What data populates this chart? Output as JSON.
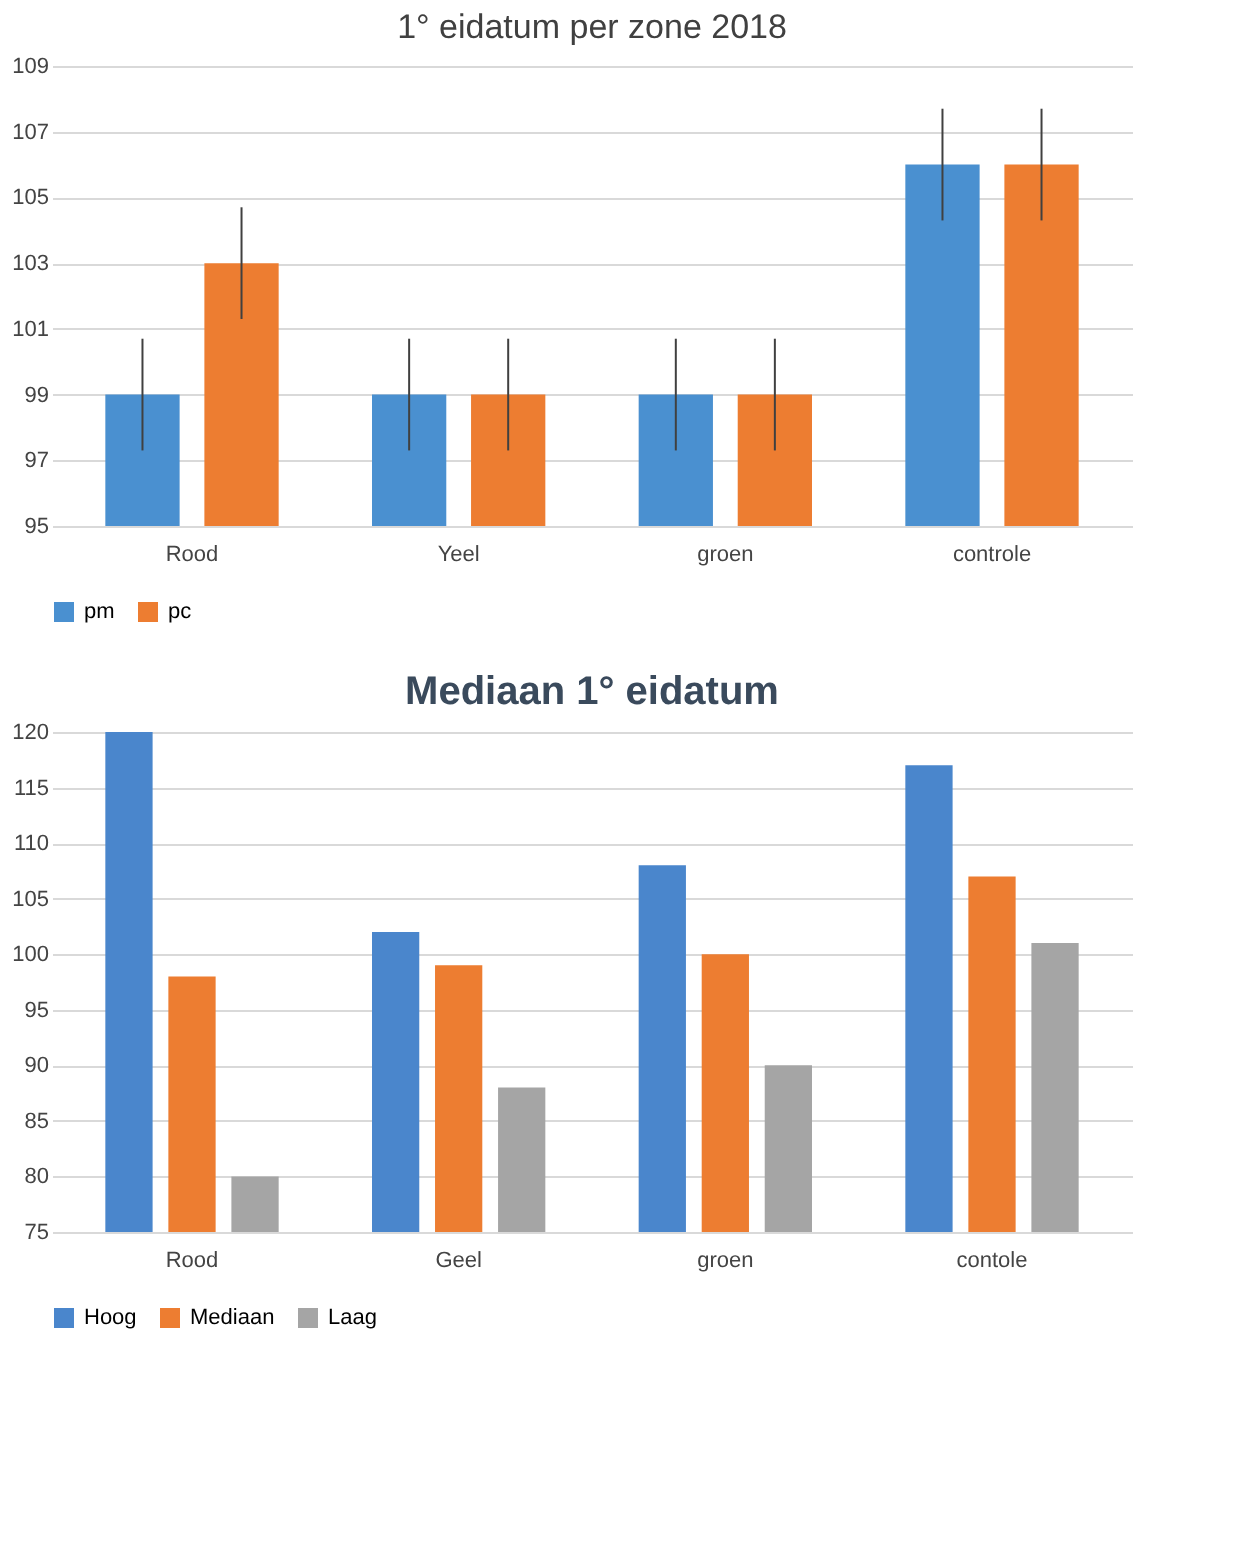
{
  "chart_data": [
    {
      "type": "bar",
      "title": "1° eidatum per zone 2018",
      "categories": [
        "Rood",
        "Yeel",
        "groen",
        "controle"
      ],
      "series": [
        {
          "name": "pm",
          "color": "#4a90d0",
          "values": [
            99,
            99,
            99,
            106
          ],
          "errors": [
            1.7,
            1.7,
            1.7,
            1.7
          ]
        },
        {
          "name": "pc",
          "color": "#ed7d31",
          "values": [
            103,
            99,
            99,
            106
          ],
          "errors": [
            1.7,
            1.7,
            1.7,
            1.7
          ]
        }
      ],
      "ylim": [
        95,
        109
      ],
      "yticks": [
        95,
        97,
        99,
        101,
        103,
        105,
        107,
        109
      ],
      "grid": "y",
      "legend": "bottom"
    },
    {
      "type": "bar",
      "title": "Mediaan 1° eidatum",
      "categories": [
        "Rood",
        "Geel",
        "groen",
        "contole"
      ],
      "series": [
        {
          "name": "Hoog",
          "color": "#4a86cc",
          "values": [
            120,
            102,
            108,
            117
          ]
        },
        {
          "name": "Mediaan",
          "color": "#ed7d31",
          "values": [
            98,
            99,
            100,
            107
          ]
        },
        {
          "name": "Laag",
          "color": "#a5a5a5",
          "values": [
            80,
            88,
            90,
            101
          ]
        }
      ],
      "ylim": [
        75,
        120
      ],
      "yticks": [
        75,
        80,
        85,
        90,
        95,
        100,
        105,
        110,
        115,
        120
      ],
      "grid": "y",
      "legend": "bottom"
    }
  ]
}
